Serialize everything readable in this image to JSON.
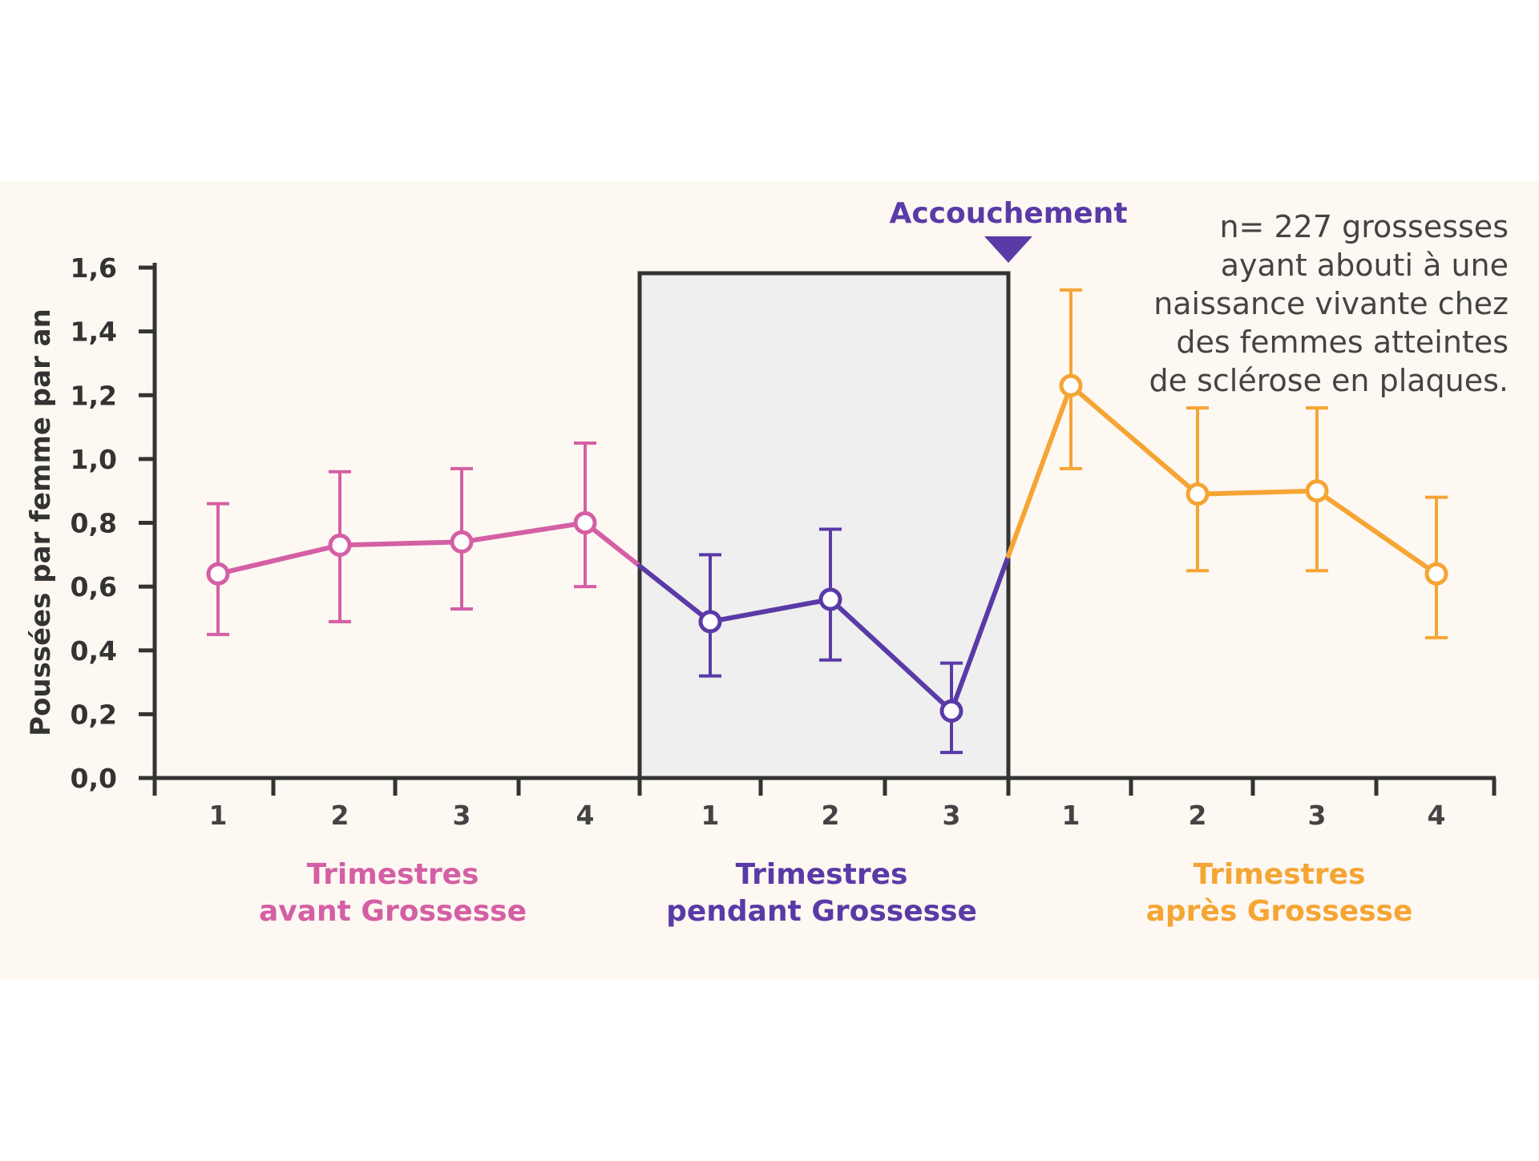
{
  "chart_data": {
    "type": "line",
    "ylabel": "Poussées par femme par an",
    "ylim": [
      0,
      1.6
    ],
    "yticks": [
      "0,0",
      "0,2",
      "0,4",
      "0,6",
      "0,8",
      "1,0",
      "1,2",
      "1,4",
      "1,6"
    ],
    "grid": false,
    "annotation": "Accouchement",
    "note": [
      "n= 227 grossesses",
      "ayant abouti à une",
      "naissance vivante chez",
      "des femmes atteintes",
      "de sclérose en plaques."
    ],
    "series": [
      {
        "name": "Trimestres avant Grossesse",
        "label_lines": [
          "Trimestres",
          "avant Grossesse"
        ],
        "color": "#d45fa4",
        "categories": [
          "1",
          "2",
          "3",
          "4"
        ],
        "values": [
          0.64,
          0.73,
          0.74,
          0.8
        ],
        "err_low": [
          0.45,
          0.49,
          0.53,
          0.6
        ],
        "err_high": [
          0.86,
          0.96,
          0.97,
          1.05
        ]
      },
      {
        "name": "Trimestres pendant Grossesse",
        "label_lines": [
          "Trimestres",
          "pendant Grossesse"
        ],
        "color": "#5a3aa6",
        "categories": [
          "1",
          "2",
          "3"
        ],
        "values": [
          0.49,
          0.56,
          0.21
        ],
        "err_low": [
          0.32,
          0.37,
          0.08
        ],
        "err_high": [
          0.7,
          0.78,
          0.36
        ]
      },
      {
        "name": "Trimestres après Grossesse",
        "label_lines": [
          "Trimestres",
          "après Grossesse"
        ],
        "color": "#f5a534",
        "categories": [
          "1",
          "2",
          "3",
          "4"
        ],
        "values": [
          1.23,
          0.89,
          0.9,
          0.64
        ],
        "err_low": [
          0.97,
          0.65,
          0.65,
          0.44
        ],
        "err_high": [
          1.53,
          1.16,
          1.16,
          0.88
        ]
      }
    ]
  }
}
